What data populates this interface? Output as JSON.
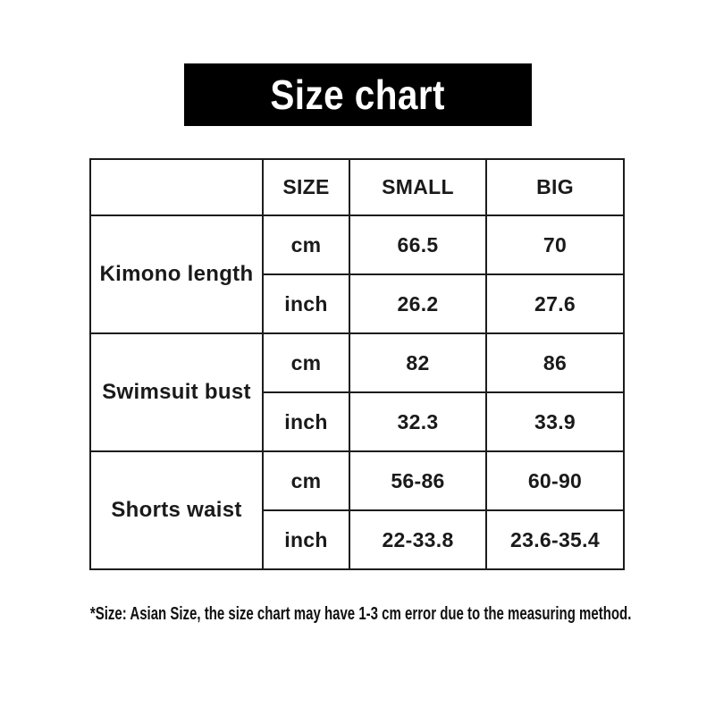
{
  "banner": {
    "title": "Size chart",
    "bg_color": "#000000",
    "text_color": "#ffffff"
  },
  "table": {
    "headers": [
      "",
      "SIZE",
      "SMALL",
      "BIG"
    ],
    "groups": [
      {
        "label": "Kimono length",
        "rows": [
          {
            "unit": "cm",
            "small": "66.5",
            "big": "70"
          },
          {
            "unit": "inch",
            "small": "26.2",
            "big": "27.6"
          }
        ]
      },
      {
        "label": "Swimsuit bust",
        "rows": [
          {
            "unit": "cm",
            "small": "82",
            "big": "86"
          },
          {
            "unit": "inch",
            "small": "32.3",
            "big": "33.9"
          }
        ]
      },
      {
        "label": "Shorts waist",
        "rows": [
          {
            "unit": "cm",
            "small": "56-86",
            "big": "60-90"
          },
          {
            "unit": "inch",
            "small": "22-33.8",
            "big": "23.6-35.4"
          }
        ]
      }
    ],
    "border_color": "#1c1c1c"
  },
  "footnote": "*Size: Asian Size, the size chart may have 1-3 cm error due to the measuring method.",
  "chart_data": {
    "type": "table",
    "title": "Size chart",
    "columns": [
      "",
      "SIZE",
      "SMALL",
      "BIG"
    ],
    "rows": [
      [
        "Kimono length",
        "cm",
        "66.5",
        "70"
      ],
      [
        "Kimono length",
        "inch",
        "26.2",
        "27.6"
      ],
      [
        "Swimsuit bust",
        "cm",
        "82",
        "86"
      ],
      [
        "Swimsuit bust",
        "inch",
        "32.3",
        "33.9"
      ],
      [
        "Shorts waist",
        "cm",
        "56-86",
        "60-90"
      ],
      [
        "Shorts waist",
        "inch",
        "22-33.8",
        "23.6-35.4"
      ]
    ],
    "footnote": "*Size: Asian Size, the size chart may have 1-3 cm error due to the measuring method.",
    "layout": {
      "banner_bg": "#000000",
      "banner_text": "#ffffff",
      "grid": "on"
    }
  }
}
